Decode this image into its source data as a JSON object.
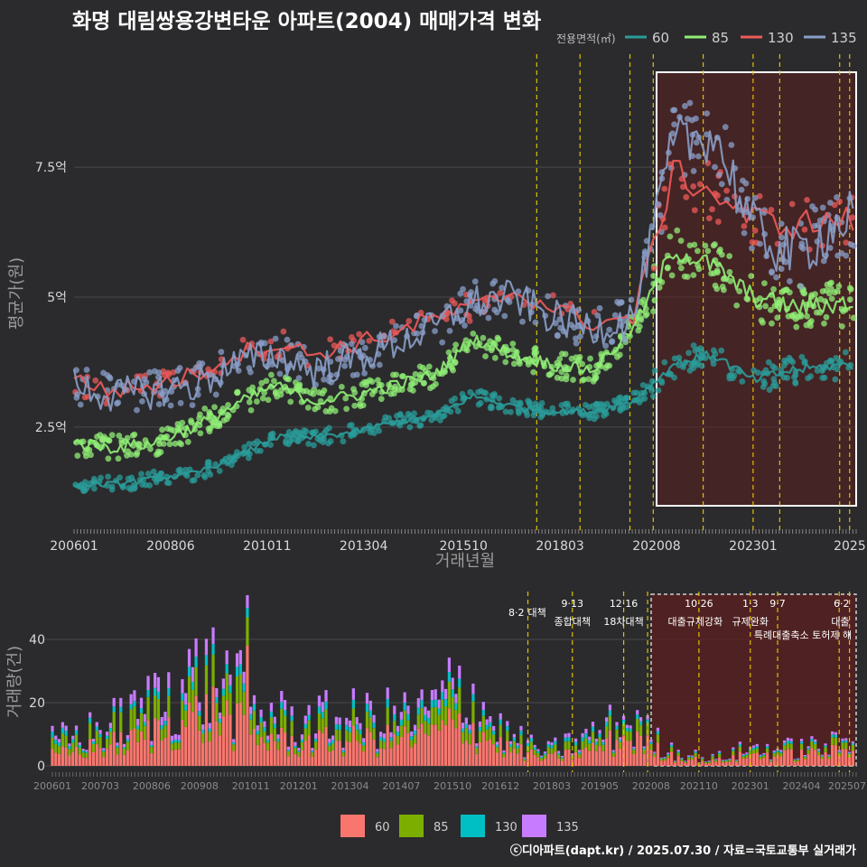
{
  "title": "화명 대림쌍용강변타운 아파트(2004) 매매가격 변화",
  "footer": "ⓒ디아파트(dapt.kr) / 2025.07.30 / 자료=국토교통부 실거래가",
  "colors": {
    "background": "#2b2b2d",
    "s60": "#2a9c9a",
    "s85": "#90ee75",
    "s130": "#ee5a5a",
    "s135": "#8a9fc8",
    "bar60": "#f8766d",
    "bar85": "#7cae00",
    "bar130": "#00bfc4",
    "bar135": "#c77cff",
    "vline": "#e0c000",
    "highlight": "#5a1f1f"
  },
  "chart_data": [
    {
      "type": "line",
      "title": "화명 대림쌍용강변타운 아파트(2004) 매매가격 변화",
      "xlabel": "거래년월",
      "ylabel": "평균가(원)",
      "x_tick_labels": [
        "200601",
        "200806",
        "201011",
        "201304",
        "201510",
        "201803",
        "202008",
        "202301",
        "2025"
      ],
      "x_range": [
        "2006-01",
        "2025-07"
      ],
      "y_ticks": [
        {
          "value": 2.5,
          "label": "2.5억"
        },
        {
          "value": 5,
          "label": "5억"
        },
        {
          "value": 7.5,
          "label": "7.5억"
        }
      ],
      "ylim": [
        0.5,
        9.5
      ],
      "legend_title": "전용면적(㎡)",
      "legend_position": "top-right",
      "x_years": [
        2006,
        2007,
        2008,
        2009,
        2010,
        2011,
        2012,
        2013,
        2014,
        2015,
        2016,
        2017,
        2018,
        2019,
        2020,
        2021,
        2022,
        2023,
        2024,
        2025.5
      ],
      "series": [
        {
          "name": "60",
          "color": "#2a9c9a",
          "values": [
            1.4,
            1.4,
            1.5,
            1.6,
            1.9,
            2.3,
            2.3,
            2.4,
            2.6,
            2.7,
            3.1,
            2.9,
            2.8,
            2.8,
            3.0,
            3.7,
            3.9,
            3.4,
            3.6,
            3.7
          ]
        },
        {
          "name": "85",
          "color": "#90ee75",
          "values": [
            2.2,
            2.1,
            2.2,
            2.5,
            2.9,
            3.3,
            3.0,
            3.1,
            3.3,
            3.5,
            4.2,
            3.9,
            3.7,
            3.6,
            4.4,
            5.9,
            5.6,
            5.0,
            4.8,
            4.9
          ]
        },
        {
          "name": "130",
          "color": "#ee5a5a",
          "values": [
            3.4,
            3.2,
            3.3,
            3.5,
            3.9,
            4.1,
            3.9,
            4.1,
            4.3,
            4.6,
            4.8,
            5.1,
            4.8,
            4.5,
            4.6,
            7.4,
            7.0,
            6.5,
            6.4,
            6.5
          ]
        },
        {
          "name": "135",
          "color": "#8a9fc8",
          "values": [
            3.3,
            3.1,
            3.2,
            3.3,
            3.7,
            3.9,
            3.6,
            3.8,
            4.1,
            4.4,
            4.9,
            5.0,
            4.6,
            4.4,
            4.6,
            7.9,
            8.2,
            6.3,
            5.8,
            6.6
          ]
        }
      ],
      "highlight_range": [
        "2020-08",
        "2025-07"
      ],
      "policy_lines": [
        "2017-08",
        "2018-09",
        "2019-12",
        "2020-07",
        "2021-10",
        "2023-01",
        "2023-09",
        "2025-03",
        "2025-06"
      ]
    },
    {
      "type": "bar",
      "stacked": true,
      "ylabel": "거래량(건)",
      "x_tick_labels": [
        "200601",
        "200703",
        "200806",
        "200908",
        "201011",
        "201201",
        "201304",
        "201407",
        "201510",
        "201612",
        "201803",
        "201905",
        "202008",
        "202110",
        "202301",
        "202404",
        "202507"
      ],
      "y_ticks": [
        0,
        20,
        40
      ],
      "ylim": [
        0,
        56
      ],
      "legend_position": "bottom",
      "x_years": [
        2006,
        2007,
        2008,
        2009,
        2010,
        2011,
        2012,
        2013,
        2014,
        2015,
        2016,
        2017,
        2018,
        2019,
        2020,
        2021,
        2022,
        2023,
        2024,
        2025.5
      ],
      "series": [
        {
          "name": "60",
          "color": "#f8766d",
          "values": [
            3,
            5,
            7,
            12,
            15,
            8,
            6,
            7,
            7,
            8,
            12,
            5,
            2,
            4,
            8,
            3,
            1,
            3,
            3,
            4
          ]
        },
        {
          "name": "85",
          "color": "#7cae00",
          "values": [
            2,
            3,
            4,
            5,
            6,
            4,
            3,
            3,
            3,
            3,
            6,
            2,
            1,
            2,
            3,
            1,
            0.5,
            1,
            1,
            1.5
          ]
        },
        {
          "name": "130",
          "color": "#00bfc4",
          "values": [
            1,
            1,
            1,
            2,
            2,
            1.5,
            1,
            1.5,
            1.5,
            1.5,
            2,
            1,
            0.5,
            1,
            1,
            0.5,
            0.2,
            0.5,
            0.5,
            0.5
          ]
        },
        {
          "name": "135",
          "color": "#c77cff",
          "values": [
            1,
            1,
            2,
            4,
            3,
            2,
            2,
            2,
            2,
            2,
            3,
            1,
            0.5,
            1,
            1,
            0.5,
            0.2,
            0.5,
            0.5,
            0.5
          ]
        }
      ],
      "peak_bar": {
        "x": "2010-10",
        "value": 54
      },
      "policies": [
        {
          "date": "2017-08",
          "top": "8·2",
          "bottom": "대책"
        },
        {
          "date": "2018-09",
          "top": "9·13",
          "bottom": "종합대책"
        },
        {
          "date": "2019-12",
          "top": "12·16",
          "bottom": "18차대책"
        },
        {
          "date": "2021-10",
          "top": "10·26",
          "bottom": "대출규제강화"
        },
        {
          "date": "2023-01",
          "top": "1·3",
          "bottom": "규제완화"
        },
        {
          "date": "2023-09",
          "top": "9·7",
          "bottom": "특례대출축소 토허제 해"
        },
        {
          "date": "2025-06",
          "top": "6·2",
          "bottom": "대출"
        }
      ],
      "highlight_range": [
        "2020-08",
        "2025-07"
      ]
    }
  ]
}
